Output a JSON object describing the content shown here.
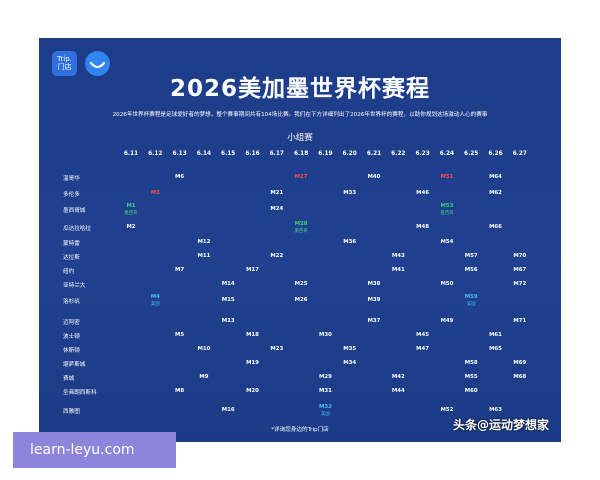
{
  "logo": {
    "line1": "Trip.",
    "line2": "门店"
  },
  "title": "2026美加墨世界杯赛程",
  "description": "2026年世界杯赛程是足球爱好者的梦想，整个赛事期间共有104场比赛。我们在下方详细列出了2026年世界杯的赛程，以助你规划这场激动人心的赛事",
  "stage": "小组赛",
  "dates": [
    "6.11",
    "6.12",
    "6.13",
    "6.14",
    "6.15",
    "6.16",
    "6.17",
    "6.18",
    "6.19",
    "6.20",
    "6.21",
    "6.22",
    "6.23",
    "6.24",
    "6.25",
    "6.26",
    "6.27"
  ],
  "cities": [
    "温哥华",
    "多伦多",
    "墨西哥城",
    "瓜达拉哈拉",
    "蒙特雷",
    "达拉斯",
    "纽约",
    "亚特兰大",
    "洛杉矶",
    "迈阿密",
    "波士顿",
    "休斯顿",
    "堪萨斯城",
    "费城",
    "圣弗朗西斯科",
    "西雅图"
  ],
  "matches": [
    {
      "row": 0,
      "col": 2,
      "text": "M6"
    },
    {
      "row": 0,
      "col": 7,
      "text": "M27",
      "style": "red"
    },
    {
      "row": 0,
      "col": 10,
      "text": "M40"
    },
    {
      "row": 0,
      "col": 13,
      "text": "M51",
      "style": "red"
    },
    {
      "row": 0,
      "col": 15,
      "text": "M64"
    },
    {
      "row": 1,
      "col": 1,
      "text": "M3",
      "style": "red"
    },
    {
      "row": 1,
      "col": 6,
      "text": "M21"
    },
    {
      "row": 1,
      "col": 9,
      "text": "M33"
    },
    {
      "row": 1,
      "col": 12,
      "text": "M46"
    },
    {
      "row": 1,
      "col": 15,
      "text": "M62"
    },
    {
      "row": 2,
      "col": 0,
      "text": "M1",
      "style": "green",
      "sub": "墨西哥"
    },
    {
      "row": 2,
      "col": 6,
      "text": "M24"
    },
    {
      "row": 2,
      "col": 13,
      "text": "M53",
      "style": "green",
      "sub": "墨西哥"
    },
    {
      "row": 3,
      "col": 0,
      "text": "M2"
    },
    {
      "row": 3,
      "col": 7,
      "text": "M28",
      "style": "green",
      "sub": "墨西哥"
    },
    {
      "row": 3,
      "col": 12,
      "text": "M48"
    },
    {
      "row": 3,
      "col": 15,
      "text": "M66"
    },
    {
      "row": 4,
      "col": 3,
      "text": "M12"
    },
    {
      "row": 4,
      "col": 9,
      "text": "M36"
    },
    {
      "row": 4,
      "col": 13,
      "text": "M54"
    },
    {
      "row": 5,
      "col": 3,
      "text": "M11"
    },
    {
      "row": 5,
      "col": 6,
      "text": "M22"
    },
    {
      "row": 5,
      "col": 11,
      "text": "M43"
    },
    {
      "row": 5,
      "col": 14,
      "text": "M57"
    },
    {
      "row": 5,
      "col": 16,
      "text": "M70"
    },
    {
      "row": 6,
      "col": 2,
      "text": "M7"
    },
    {
      "row": 6,
      "col": 5,
      "text": "M17"
    },
    {
      "row": 6,
      "col": 11,
      "text": "M41"
    },
    {
      "row": 6,
      "col": 14,
      "text": "M56"
    },
    {
      "row": 6,
      "col": 16,
      "text": "M67"
    },
    {
      "row": 7,
      "col": 4,
      "text": "M14"
    },
    {
      "row": 7,
      "col": 7,
      "text": "M25"
    },
    {
      "row": 7,
      "col": 10,
      "text": "M38"
    },
    {
      "row": 7,
      "col": 13,
      "text": "M50"
    },
    {
      "row": 7,
      "col": 16,
      "text": "M72"
    },
    {
      "row": 8,
      "col": 1,
      "text": "M4",
      "style": "cyan",
      "sub": "美国"
    },
    {
      "row": 8,
      "col": 4,
      "text": "M15"
    },
    {
      "row": 8,
      "col": 7,
      "text": "M26"
    },
    {
      "row": 8,
      "col": 10,
      "text": "M39"
    },
    {
      "row": 8,
      "col": 14,
      "text": "M59",
      "style": "cyan",
      "sub": "美国"
    },
    {
      "row": 9,
      "col": 4,
      "text": "M13"
    },
    {
      "row": 9,
      "col": 10,
      "text": "M37"
    },
    {
      "row": 9,
      "col": 13,
      "text": "M49"
    },
    {
      "row": 9,
      "col": 16,
      "text": "M71"
    },
    {
      "row": 10,
      "col": 2,
      "text": "M5"
    },
    {
      "row": 10,
      "col": 5,
      "text": "M18"
    },
    {
      "row": 10,
      "col": 8,
      "text": "M30"
    },
    {
      "row": 10,
      "col": 12,
      "text": "M45"
    },
    {
      "row": 10,
      "col": 15,
      "text": "M61"
    },
    {
      "row": 11,
      "col": 3,
      "text": "M10"
    },
    {
      "row": 11,
      "col": 6,
      "text": "M23"
    },
    {
      "row": 11,
      "col": 9,
      "text": "M35"
    },
    {
      "row": 11,
      "col": 12,
      "text": "M47"
    },
    {
      "row": 11,
      "col": 15,
      "text": "M65"
    },
    {
      "row": 12,
      "col": 5,
      "text": "M19"
    },
    {
      "row": 12,
      "col": 9,
      "text": "M34"
    },
    {
      "row": 12,
      "col": 14,
      "text": "M58"
    },
    {
      "row": 12,
      "col": 16,
      "text": "M69"
    },
    {
      "row": 13,
      "col": 3,
      "text": "M9"
    },
    {
      "row": 13,
      "col": 8,
      "text": "M29"
    },
    {
      "row": 13,
      "col": 11,
      "text": "M42"
    },
    {
      "row": 13,
      "col": 14,
      "text": "M55"
    },
    {
      "row": 13,
      "col": 16,
      "text": "M68"
    },
    {
      "row": 14,
      "col": 2,
      "text": "M8"
    },
    {
      "row": 14,
      "col": 5,
      "text": "M20"
    },
    {
      "row": 14,
      "col": 8,
      "text": "M31"
    },
    {
      "row": 14,
      "col": 11,
      "text": "M44"
    },
    {
      "row": 14,
      "col": 14,
      "text": "M60"
    },
    {
      "row": 15,
      "col": 4,
      "text": "M16"
    },
    {
      "row": 15,
      "col": 8,
      "text": "M32",
      "style": "cyan",
      "sub": "美国"
    },
    {
      "row": 15,
      "col": 13,
      "text": "M52"
    },
    {
      "row": 15,
      "col": 15,
      "text": "M63"
    }
  ],
  "footnote": "*详询您身边的Trip门店",
  "watermark": "头条@运动梦想家",
  "site_label": "learn-leyu.com",
  "colors": {
    "background": "#1e3f8c",
    "host_canada": "#ff4a4a",
    "host_mexico": "#3fd07a",
    "host_usa": "#4fb8ff"
  }
}
